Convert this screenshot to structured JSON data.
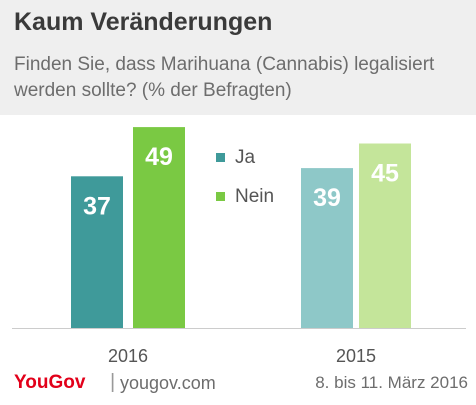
{
  "header": {
    "title": "Kaum Veränderungen",
    "subtitle": "Finden Sie, dass Marihuana (Cannabis) legalisiert werden sollte? (% der Befragten)"
  },
  "footer": {
    "brand": "YouGov",
    "separator": "|",
    "url": "yougov.com",
    "date": "8. bis 11. März 2016"
  },
  "colors": {
    "header_bg": "#efefef",
    "ja_2016": "#3f9a9a",
    "nein_2016": "#7ac943",
    "ja_2015": "#8ec8c8",
    "nein_2015": "#c4e59a",
    "brand": "#e2001a"
  },
  "chart_data": {
    "type": "bar",
    "categories": [
      "2016",
      "2015"
    ],
    "series": [
      {
        "name": "Ja",
        "values": [
          37,
          39
        ]
      },
      {
        "name": "Nein",
        "values": [
          49,
          45
        ]
      }
    ],
    "legend_position": "center-between-groups",
    "grid": false
  }
}
